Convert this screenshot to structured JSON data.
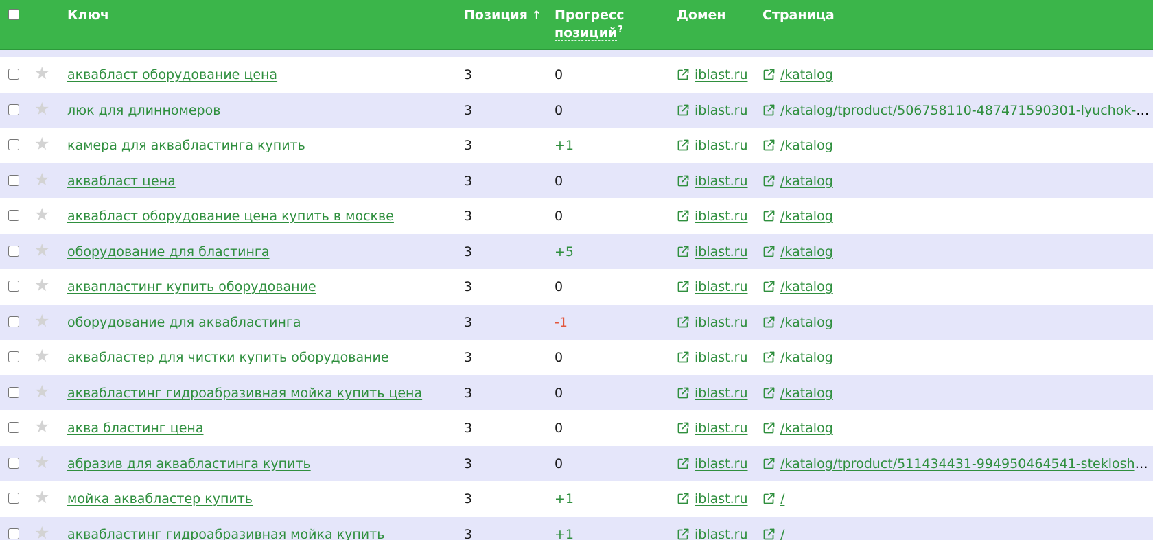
{
  "header": {
    "key_label": "Ключ",
    "position_label": "Позиция",
    "position_sort_arrow": "↑",
    "progress_label_line1": "Прогресс",
    "progress_label_line2": "позиций",
    "progress_help_mark": "?",
    "domain_label": "Домен",
    "page_label": "Страница"
  },
  "colors": {
    "header_bg": "#3bb54a",
    "link": "#2f8f3e",
    "row_alt_bg": "#e5e6fa",
    "progress_positive": "#2f8f3e",
    "progress_negative": "#e2563c"
  },
  "icons": {
    "row_star": "star-icon",
    "external_link": "external-link-icon"
  },
  "rows": [
    {
      "key": "аквабласт оборудование цена",
      "position": "3",
      "progress": "0",
      "domain": "iblast.ru",
      "page": "/katalog"
    },
    {
      "key": "люк для длинномеров",
      "position": "3",
      "progress": "0",
      "domain": "iblast.ru",
      "page": "/katalog/tproduct/506758110-487471590301-lyuchok-d..."
    },
    {
      "key": "камера для аквабластинга купить",
      "position": "3",
      "progress": "+1",
      "domain": "iblast.ru",
      "page": "/katalog"
    },
    {
      "key": "аквабласт цена",
      "position": "3",
      "progress": "0",
      "domain": "iblast.ru",
      "page": "/katalog"
    },
    {
      "key": "аквабласт оборудование цена купить в москве",
      "position": "3",
      "progress": "0",
      "domain": "iblast.ru",
      "page": "/katalog"
    },
    {
      "key": "оборудование для бластинга",
      "position": "3",
      "progress": "+5",
      "domain": "iblast.ru",
      "page": "/katalog"
    },
    {
      "key": "аквапластинг купить оборудование",
      "position": "3",
      "progress": "0",
      "domain": "iblast.ru",
      "page": "/katalog"
    },
    {
      "key": "оборудование для аквабластинга",
      "position": "3",
      "progress": "-1",
      "domain": "iblast.ru",
      "page": "/katalog"
    },
    {
      "key": "аквабластер для чистки купить оборудование",
      "position": "3",
      "progress": "0",
      "domain": "iblast.ru",
      "page": "/katalog"
    },
    {
      "key": "аквабластинг гидроабразивная мойка купить цена",
      "position": "3",
      "progress": "0",
      "domain": "iblast.ru",
      "page": "/katalog"
    },
    {
      "key": "аква бластинг цена",
      "position": "3",
      "progress": "0",
      "domain": "iblast.ru",
      "page": "/katalog"
    },
    {
      "key": "абразив для аквабластинга купить",
      "position": "3",
      "progress": "0",
      "domain": "iblast.ru",
      "page": "/katalog/tproduct/511434431-994950464541-steklosha..."
    },
    {
      "key": "мойка аквабластер купить",
      "position": "3",
      "progress": "+1",
      "domain": "iblast.ru",
      "page": "/"
    },
    {
      "key": "аквабластинг гидроабразивная мойка купить",
      "position": "3",
      "progress": "+1",
      "domain": "iblast.ru",
      "page": "/"
    }
  ]
}
